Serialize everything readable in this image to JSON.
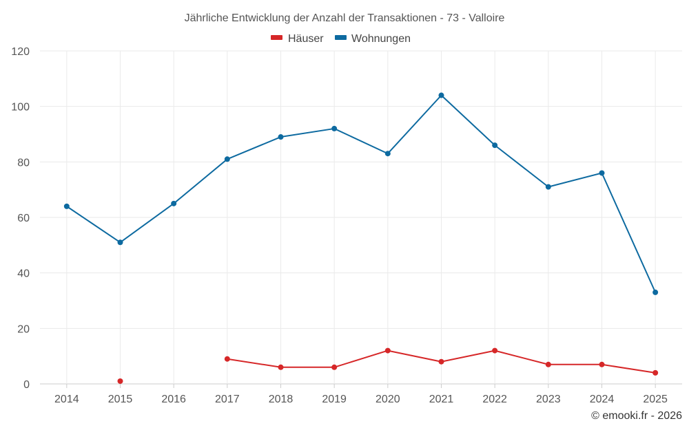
{
  "chart_data": {
    "type": "line",
    "title": "Jährliche Entwicklung der Anzahl der Transaktionen - 73 - Valloire",
    "categories": [
      "2014",
      "2015",
      "2016",
      "2017",
      "2018",
      "2019",
      "2020",
      "2021",
      "2022",
      "2023",
      "2024",
      "2025"
    ],
    "series": [
      {
        "name": "Häuser",
        "color": "#d62728",
        "values": [
          null,
          1,
          null,
          9,
          6,
          6,
          12,
          8,
          12,
          7,
          7,
          4
        ]
      },
      {
        "name": "Wohnungen",
        "color": "#0d6aa0",
        "values": [
          64,
          51,
          65,
          81,
          89,
          92,
          83,
          104,
          86,
          71,
          76,
          33
        ]
      }
    ],
    "ylim": [
      0,
      120
    ],
    "yticks": [
      0,
      20,
      40,
      60,
      80,
      100,
      120
    ],
    "grid": true,
    "legend_position": "top-center",
    "xlabel": "",
    "ylabel": ""
  },
  "credit": "© emooki.fr - 2026"
}
